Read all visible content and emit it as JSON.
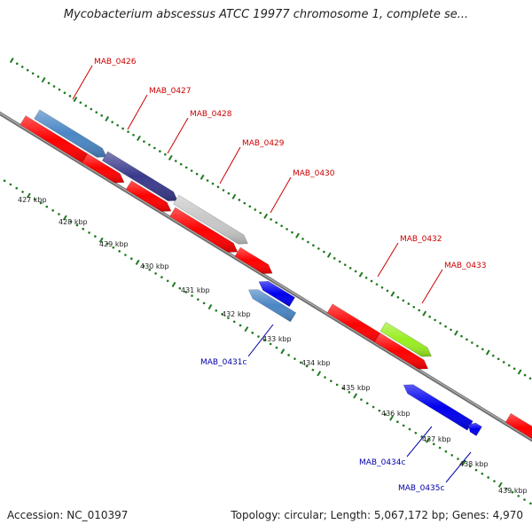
{
  "title": "Mycobacterium abscessus ATCC 19977 chromosome 1, complete se...",
  "footer": {
    "accession": "Accession: NC_010397",
    "summary": "Topology: circular; Length: 5,067,172 bp; Genes: 4,970"
  },
  "colors": {
    "backbone": "#8c8c8c",
    "tick_dots": "#1f7a1f",
    "forward_label": "#cc0000",
    "reverse_label": "#0000aa",
    "gene_red": "#ff0000",
    "gene_blue": "#0000ee",
    "gene_steelblue": "#4a86c5",
    "gene_navy": "#3a3a8c",
    "gene_gray": "#c8c8c8",
    "gene_lime": "#99ee22"
  },
  "scale_labels": [
    "427 kbp",
    "428 kbp",
    "429 kbp",
    "430 kbp",
    "431 kbp",
    "432 kbp",
    "433 kbp",
    "434 kbp",
    "435 kbp",
    "436 kbp",
    "437 kbp",
    "438 kbp",
    "439 kbp"
  ],
  "forward_labels": [
    "MAB_0426",
    "MAB_0427",
    "MAB_0428",
    "MAB_0429",
    "MAB_0430",
    "MAB_0432",
    "MAB_0433"
  ],
  "reverse_labels": [
    "MAB_0431c",
    "MAB_0434c",
    "MAB_0435c"
  ]
}
